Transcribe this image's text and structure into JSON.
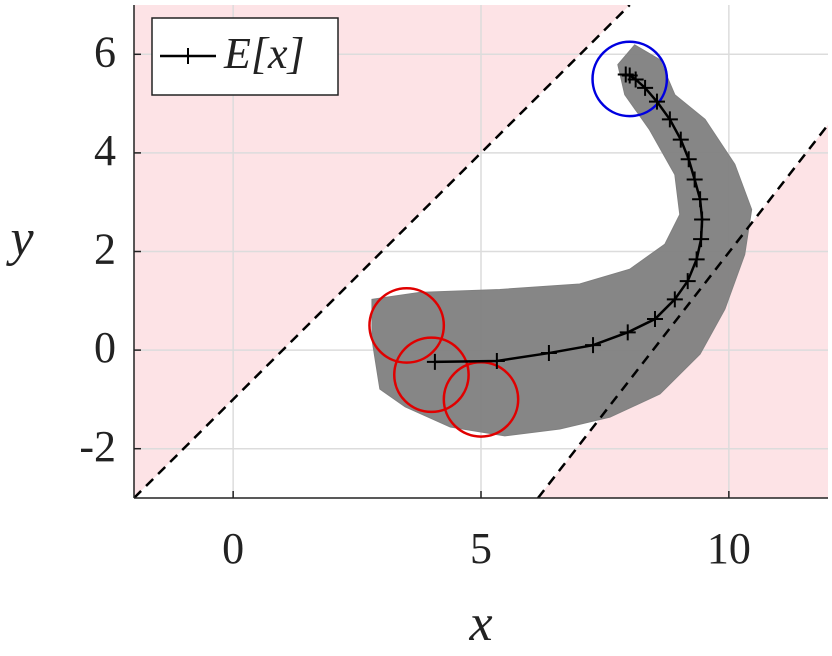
{
  "chart_data": {
    "type": "line",
    "xlabel": "x",
    "ylabel": "y",
    "xlim": [
      -2,
      12
    ],
    "ylim": [
      -3,
      7
    ],
    "xticks": [
      0,
      5,
      10
    ],
    "yticks": [
      -2,
      0,
      2,
      4,
      6
    ],
    "grid": true,
    "legend": "upper left",
    "region_color": "#fde3e6",
    "boundaries": [
      {
        "x": [
          -2,
          8
        ],
        "y": [
          -3,
          7
        ]
      },
      {
        "x": [
          6.15,
          12
        ],
        "y": [
          -3,
          4.57
        ]
      }
    ],
    "band": {
      "color": "#808080",
      "x": [
        2.8,
        3.77,
        5.38,
        6.99,
        8.0,
        8.71,
        9.01,
        8.91,
        8.4,
        7.9,
        7.76,
        8.1,
        8.61,
        8.91,
        9.52,
        10.12,
        10.46,
        10.32,
        9.92,
        9.42,
        8.61,
        7.6,
        6.59,
        5.48,
        4.38,
        3.47,
        2.96,
        2.8
      ],
      "y": [
        1.03,
        1.17,
        1.23,
        1.34,
        1.64,
        2.15,
        2.75,
        3.56,
        4.47,
        5.18,
        5.79,
        6.19,
        5.89,
        5.18,
        4.68,
        3.77,
        2.85,
        1.94,
        0.83,
        -0.08,
        -0.89,
        -1.36,
        -1.6,
        -1.74,
        -1.56,
        -1.15,
        -0.79,
        0.22
      ]
    },
    "obstacle_radius": 0.75,
    "obstacles": [
      {
        "x": 3.5,
        "y": 0.5,
        "color": "#e00000"
      },
      {
        "x": 4,
        "y": -0.5,
        "color": "#e00000"
      },
      {
        "x": 5,
        "y": -1,
        "color": "#e00000"
      },
      {
        "x": 8,
        "y": 5.5,
        "color": "#0000e0"
      }
    ],
    "series": [
      {
        "name": "E[x]",
        "color": "#000000",
        "x": [
          4.07,
          5.32,
          6.37,
          7.26,
          7.96,
          8.51,
          8.91,
          9.17,
          9.35,
          9.44,
          9.46,
          9.42,
          9.31,
          9.19,
          9.03,
          8.81,
          8.55,
          8.31,
          8.12,
          8.0,
          7.92
        ],
        "y": [
          -0.24,
          -0.22,
          -0.06,
          0.1,
          0.36,
          0.63,
          1.03,
          1.4,
          1.84,
          2.25,
          2.65,
          3.06,
          3.46,
          3.87,
          4.27,
          4.68,
          5.04,
          5.32,
          5.49,
          5.57,
          5.59
        ]
      }
    ]
  }
}
